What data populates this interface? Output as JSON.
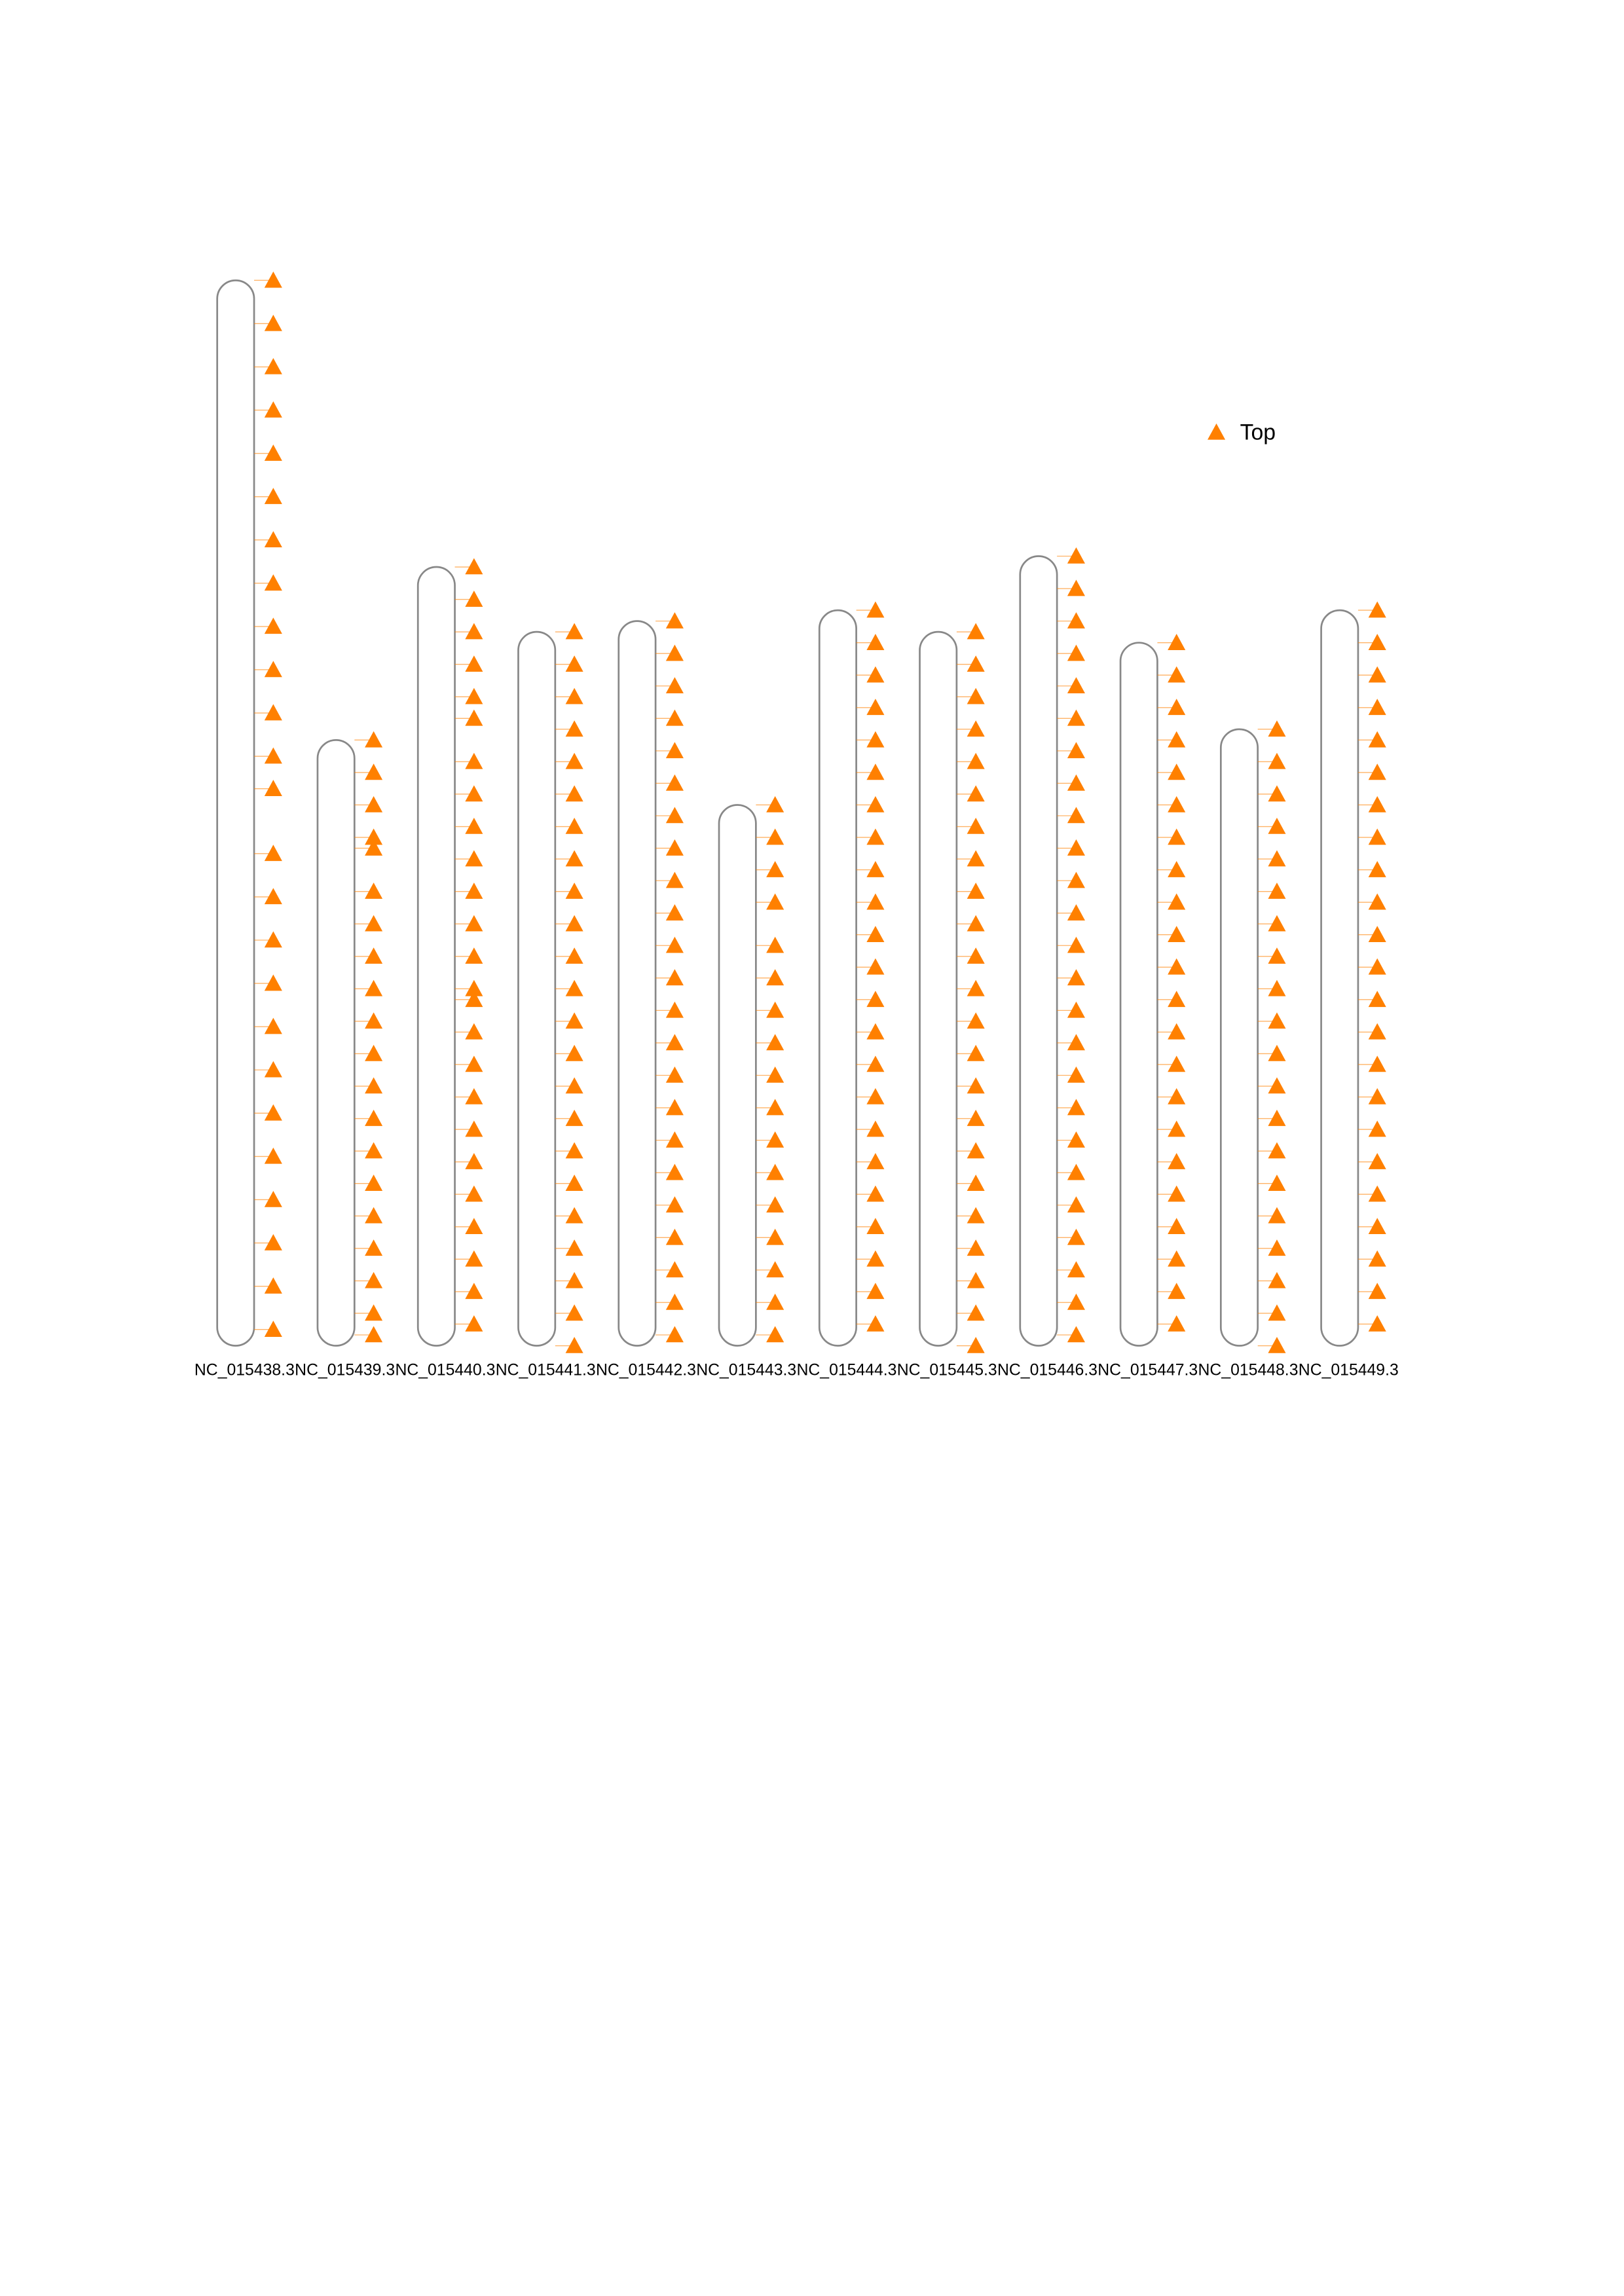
{
  "chart_data": {
    "type": "ideogram",
    "categories": [
      "NC_015438.3",
      "NC_015439.3",
      "NC_015440.3",
      "NC_015441.3",
      "NC_015442.3",
      "NC_015443.3",
      "NC_015444.3",
      "NC_015445.3",
      "NC_015446.3",
      "NC_015447.3",
      "NC_015448.3",
      "NC_015449.3"
    ],
    "values": [
      98.5,
      56,
      72,
      66,
      67,
      50,
      68,
      66,
      73,
      65,
      57,
      68
    ],
    "series": [
      {
        "name": "Top",
        "color": "#ff8000",
        "values": [
          [
            0,
            4,
            8,
            12,
            16,
            20,
            24,
            28,
            32,
            36,
            40,
            44,
            47,
            53,
            57,
            61,
            65,
            69,
            73,
            77,
            81,
            85,
            89,
            93,
            97
          ],
          [
            0,
            3,
            6,
            9,
            10,
            14,
            17,
            20,
            23,
            26,
            29,
            32,
            35,
            38,
            41,
            44,
            47,
            50,
            53,
            55
          ],
          [
            0,
            3,
            6,
            9,
            12,
            14,
            18,
            21,
            24,
            27,
            30,
            33,
            36,
            39,
            40,
            43,
            46,
            49,
            52,
            55,
            58,
            61,
            64,
            67,
            70
          ],
          [
            0,
            3,
            6,
            9,
            12,
            15,
            18,
            21,
            24,
            27,
            30,
            33,
            36,
            39,
            42,
            45,
            48,
            51,
            54,
            57,
            60,
            63,
            66
          ],
          [
            0,
            3,
            6,
            9,
            12,
            15,
            18,
            21,
            24,
            27,
            30,
            33,
            36,
            39,
            42,
            45,
            48,
            51,
            54,
            57,
            60,
            63,
            66
          ],
          [
            0,
            3,
            6,
            9,
            13,
            16,
            19,
            22,
            25,
            28,
            31,
            34,
            37,
            40,
            43,
            46,
            49
          ],
          [
            0,
            3,
            6,
            9,
            12,
            15,
            18,
            21,
            24,
            27,
            30,
            33,
            36,
            39,
            42,
            45,
            48,
            51,
            54,
            57,
            60,
            63,
            66
          ],
          [
            0,
            3,
            6,
            9,
            12,
            15,
            18,
            21,
            24,
            27,
            30,
            33,
            36,
            39,
            42,
            45,
            48,
            51,
            54,
            57,
            60,
            63,
            66
          ],
          [
            0,
            3,
            6,
            9,
            12,
            15,
            18,
            21,
            24,
            27,
            30,
            33,
            36,
            39,
            42,
            45,
            48,
            51,
            54,
            57,
            60,
            63,
            66,
            69,
            72
          ],
          [
            0,
            3,
            6,
            9,
            12,
            15,
            18,
            21,
            24,
            27,
            30,
            33,
            36,
            39,
            42,
            45,
            48,
            51,
            54,
            57,
            60,
            63
          ],
          [
            0,
            3,
            6,
            9,
            12,
            15,
            18,
            21,
            24,
            27,
            30,
            33,
            36,
            39,
            42,
            45,
            48,
            51,
            54,
            57
          ],
          [
            0,
            3,
            6,
            9,
            12,
            15,
            18,
            21,
            24,
            27,
            30,
            33,
            36,
            39,
            42,
            45,
            48,
            51,
            54,
            57,
            60,
            63,
            66
          ]
        ]
      }
    ],
    "legend": "top-right"
  }
}
